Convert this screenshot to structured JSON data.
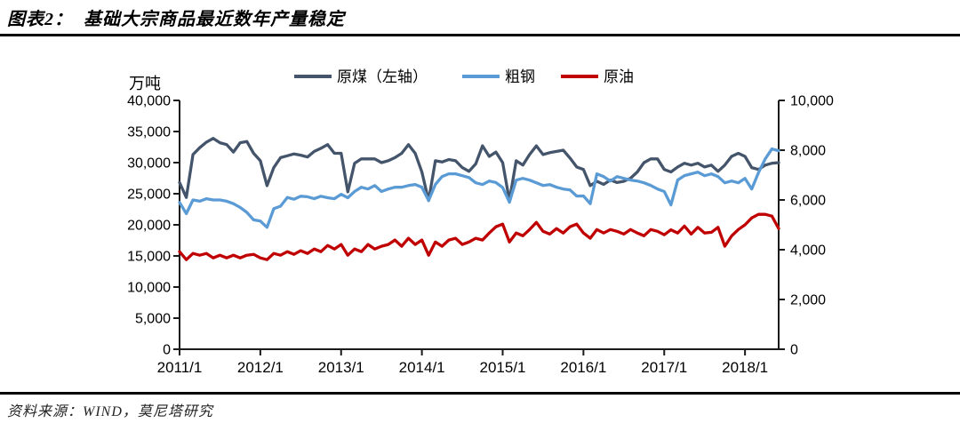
{
  "header": {
    "title": "图表2：  基础大宗商品最近数年产量稳定"
  },
  "footer": {
    "source": "资料来源：WIND，莫尼塔研究"
  },
  "chart_data": {
    "type": "line",
    "unit_label": "万吨",
    "legend_position": "top",
    "grid": "off",
    "x_start": "2011/1",
    "x_frequency": "monthly",
    "x_end": "2018/6",
    "x_tick_months": [
      0,
      12,
      24,
      36,
      48,
      60,
      72,
      84
    ],
    "x_tick_labels": [
      "2011/1",
      "2012/1",
      "2013/1",
      "2014/1",
      "2015/1",
      "2016/1",
      "2017/1",
      "2018/1"
    ],
    "left_axis": {
      "min": 0,
      "max": 40000,
      "tick_values": [
        0,
        5000,
        10000,
        15000,
        20000,
        25000,
        30000,
        35000,
        40000
      ],
      "tick_labels": [
        "0",
        "5,000",
        "10,000",
        "15,000",
        "20,000",
        "25,000",
        "30,000",
        "35,000",
        "40,000"
      ]
    },
    "right_axis": {
      "min": 0,
      "max": 10000,
      "tick_values": [
        0,
        2000,
        4000,
        6000,
        8000,
        10000
      ],
      "tick_labels": [
        "0",
        "2,000",
        "4,000",
        "6,000",
        "8,000",
        "10,000"
      ]
    },
    "series": [
      {
        "name": "原煤（左轴）",
        "id": "raw-coal",
        "axis": "left",
        "color": "#44546A",
        "values": [
          26800,
          24400,
          31300,
          32400,
          33300,
          33900,
          33200,
          32900,
          31700,
          33200,
          33400,
          31500,
          30300,
          26300,
          29200,
          30800,
          31100,
          31400,
          31200,
          30900,
          31800,
          32300,
          32900,
          31500,
          31500,
          25300,
          29900,
          30600,
          30600,
          30600,
          30000,
          30300,
          30800,
          31500,
          32900,
          31500,
          28500,
          23900,
          30300,
          30100,
          30500,
          30300,
          29200,
          28600,
          29800,
          32700,
          31000,
          31700,
          30000,
          23900,
          30300,
          29600,
          31300,
          32700,
          31300,
          31600,
          31800,
          32000,
          30750,
          29300,
          28900,
          26300,
          27000,
          26500,
          27200,
          26800,
          27000,
          27500,
          28500,
          30000,
          30600,
          30600,
          28900,
          28500,
          29300,
          29900,
          29600,
          29900,
          29300,
          29600,
          28600,
          29600,
          31000,
          31500,
          31000,
          29200,
          28900,
          29600,
          29900,
          30000
        ]
      },
      {
        "name": "粗钢",
        "id": "crude-steel",
        "axis": "right",
        "color": "#5B9BD5",
        "values": [
          5900,
          5450,
          6000,
          5950,
          6050,
          6000,
          6000,
          5950,
          5850,
          5700,
          5500,
          5200,
          5150,
          4900,
          5650,
          5750,
          6100,
          6030,
          6150,
          6130,
          6050,
          6150,
          6090,
          6050,
          6230,
          6090,
          6340,
          6510,
          6440,
          6580,
          6340,
          6440,
          6510,
          6510,
          6580,
          6620,
          6510,
          5980,
          6620,
          6940,
          7050,
          7050,
          6975,
          6900,
          6690,
          6619,
          6760,
          6700,
          6500,
          5907,
          6797,
          6868,
          6797,
          6690,
          6583,
          6619,
          6512,
          6441,
          6405,
          6157,
          6160,
          5850,
          7050,
          6940,
          6760,
          6940,
          6868,
          6800,
          6760,
          6690,
          6583,
          6440,
          6340,
          5800,
          6800,
          6980,
          7050,
          7117,
          6975,
          7046,
          6940,
          6690,
          6760,
          6690,
          6868,
          6440,
          7100,
          7650,
          8050,
          7980
        ]
      },
      {
        "name": "原油",
        "id": "crude-oil",
        "axis": "right",
        "color": "#C00000",
        "values": [
          3920,
          3600,
          3850,
          3780,
          3850,
          3670,
          3780,
          3670,
          3780,
          3670,
          3780,
          3815,
          3670,
          3600,
          3850,
          3780,
          3920,
          3815,
          3960,
          3850,
          4030,
          3920,
          4170,
          4030,
          4210,
          3780,
          4030,
          3920,
          4210,
          4030,
          4140,
          4210,
          4390,
          4140,
          4460,
          4210,
          4390,
          3780,
          4310,
          4140,
          4390,
          4460,
          4210,
          4310,
          4460,
          4390,
          4670,
          4920,
          5030,
          4310,
          4670,
          4560,
          4810,
          5100,
          4740,
          4630,
          4850,
          4670,
          4920,
          5030,
          4670,
          4460,
          4810,
          4670,
          4810,
          4740,
          4630,
          4810,
          4670,
          4560,
          4810,
          4740,
          4600,
          4800,
          4670,
          4950,
          4630,
          4900,
          4670,
          4700,
          4900,
          4140,
          4550,
          4810,
          5000,
          5280,
          5420,
          5420,
          5350,
          4850
        ]
      }
    ]
  }
}
